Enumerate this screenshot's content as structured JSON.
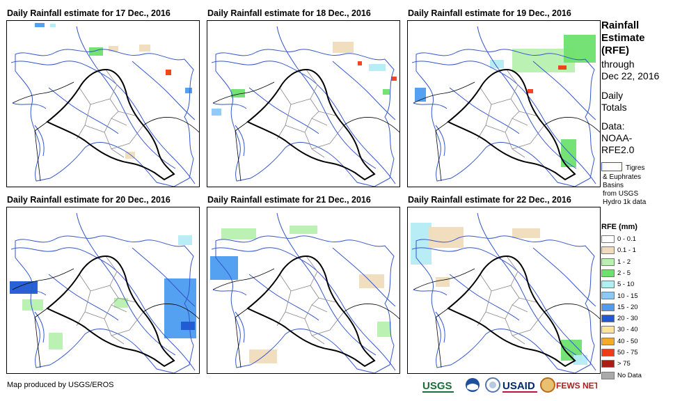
{
  "panels": [
    {
      "title": "Daily Rainfall estimate for 17 Dec., 2016"
    },
    {
      "title": "Daily Rainfall estimate for 18 Dec., 2016"
    },
    {
      "title": "Daily Rainfall estimate for 19 Dec., 2016"
    },
    {
      "title": "Daily Rainfall estimate for 20 Dec., 2016"
    },
    {
      "title": "Daily Rainfall estimate for 21 Dec., 2016"
    },
    {
      "title": "Daily Rainfall estimate for 22 Dec., 2016"
    }
  ],
  "sidebar": {
    "title_lines": [
      "Rainfall",
      "Estimate",
      "(RFE)"
    ],
    "through": "through",
    "date": "Dec 22, 2016",
    "daily": "Daily",
    "totals": "Totals",
    "data_label": "Data:",
    "data_source_1": "NOAA-",
    "data_source_2": "RFE2.0",
    "basin_label_1": "Tigres",
    "basin_label_2": "& Euphrates",
    "basin_label_3": "Basins",
    "basin_label_4": "from USGS",
    "basin_label_5": "Hydro 1k data",
    "basin_color": "#3355cc"
  },
  "legend": {
    "title": "RFE (mm)",
    "items": [
      {
        "label": "0 - 0.1",
        "color": "#ffffff"
      },
      {
        "label": "0.1 - 1",
        "color": "#f0dcbc"
      },
      {
        "label": "1 - 2",
        "color": "#b8f0b0"
      },
      {
        "label": "2 - 5",
        "color": "#6ee06e"
      },
      {
        "label": "5 - 10",
        "color": "#b4ecf4"
      },
      {
        "label": "10 - 15",
        "color": "#8cc8f4"
      },
      {
        "label": "15 - 20",
        "color": "#4c9cf0"
      },
      {
        "label": "20 - 30",
        "color": "#1e5ad2"
      },
      {
        "label": "30 - 40",
        "color": "#fae696"
      },
      {
        "label": "40 - 50",
        "color": "#f5aa28"
      },
      {
        "label": "50 - 75",
        "color": "#f03c14"
      },
      {
        "label": "> 75",
        "color": "#aa1e14"
      },
      {
        "label": "No Data",
        "color": "#aaaaaa"
      }
    ]
  },
  "footer": {
    "credit": "Map produced by USGS/EROS",
    "logos": [
      "USGS",
      "NOAA",
      "DOI",
      "USAID",
      "FEWS NET"
    ]
  }
}
